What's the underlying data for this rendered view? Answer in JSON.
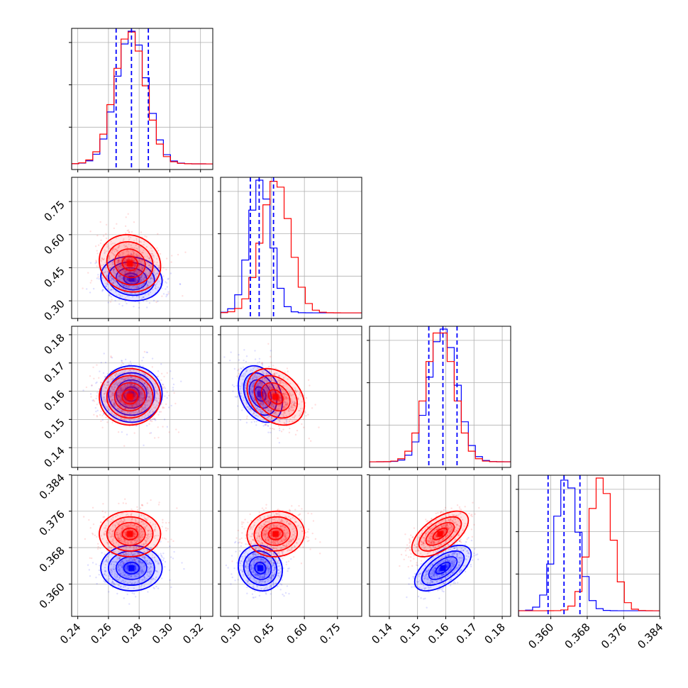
{
  "chart_data": {
    "type": "corner",
    "colors": {
      "series_1": "#0000ff",
      "series_2": "#ff0000"
    },
    "grid": true,
    "parameters": [
      {
        "range": [
          0.236,
          0.328
        ],
        "ticks": [
          0.24,
          0.26,
          0.28,
          0.3,
          0.32
        ],
        "tick_labels": [
          "0.24",
          "0.26",
          "0.28",
          "0.30",
          "0.32"
        ]
      },
      {
        "range": [
          0.22,
          0.86
        ],
        "ticks": [
          0.3,
          0.45,
          0.6,
          0.75
        ],
        "tick_labels": [
          "0.30",
          "0.45",
          "0.60",
          "0.75"
        ]
      },
      {
        "range": [
          0.133,
          0.183
        ],
        "ticks": [
          0.14,
          0.15,
          0.16,
          0.17,
          0.18
        ],
        "tick_labels": [
          "0.14",
          "0.15",
          "0.16",
          "0.17",
          "0.18"
        ]
      },
      {
        "range": [
          0.3529,
          0.3839
        ],
        "ticks": [
          0.36,
          0.368,
          0.376,
          0.384
        ],
        "tick_labels": [
          "0.360",
          "0.368",
          "0.376",
          "0.384"
        ]
      }
    ],
    "series": [
      {
        "color": "#0000ff",
        "mean": [
          0.275,
          0.4,
          0.159,
          0.3635
        ],
        "std": [
          0.01,
          0.05,
          0.005,
          0.0025
        ],
        "corr": {
          "0-1": -0.1,
          "0-2": 0.0,
          "0-3": 0.0,
          "1-2": -0.3,
          "1-3": -0.1,
          "2-3": 0.6
        }
      },
      {
        "color": "#ff0000",
        "mean": [
          0.274,
          0.47,
          0.158,
          0.371
        ],
        "std": [
          0.01,
          0.065,
          0.005,
          0.0025
        ],
        "corr": {
          "0-1": -0.1,
          "0-2": 0.0,
          "0-3": 0.0,
          "1-2": -0.3,
          "1-3": 0.05,
          "2-3": 0.6
        }
      }
    ],
    "quantiles": [
      [
        0.265,
        0.275,
        0.286
      ],
      [
        0.355,
        0.395,
        0.46
      ],
      [
        0.154,
        0.159,
        0.164
      ],
      [
        0.3594,
        0.3629,
        0.3664
      ]
    ]
  }
}
